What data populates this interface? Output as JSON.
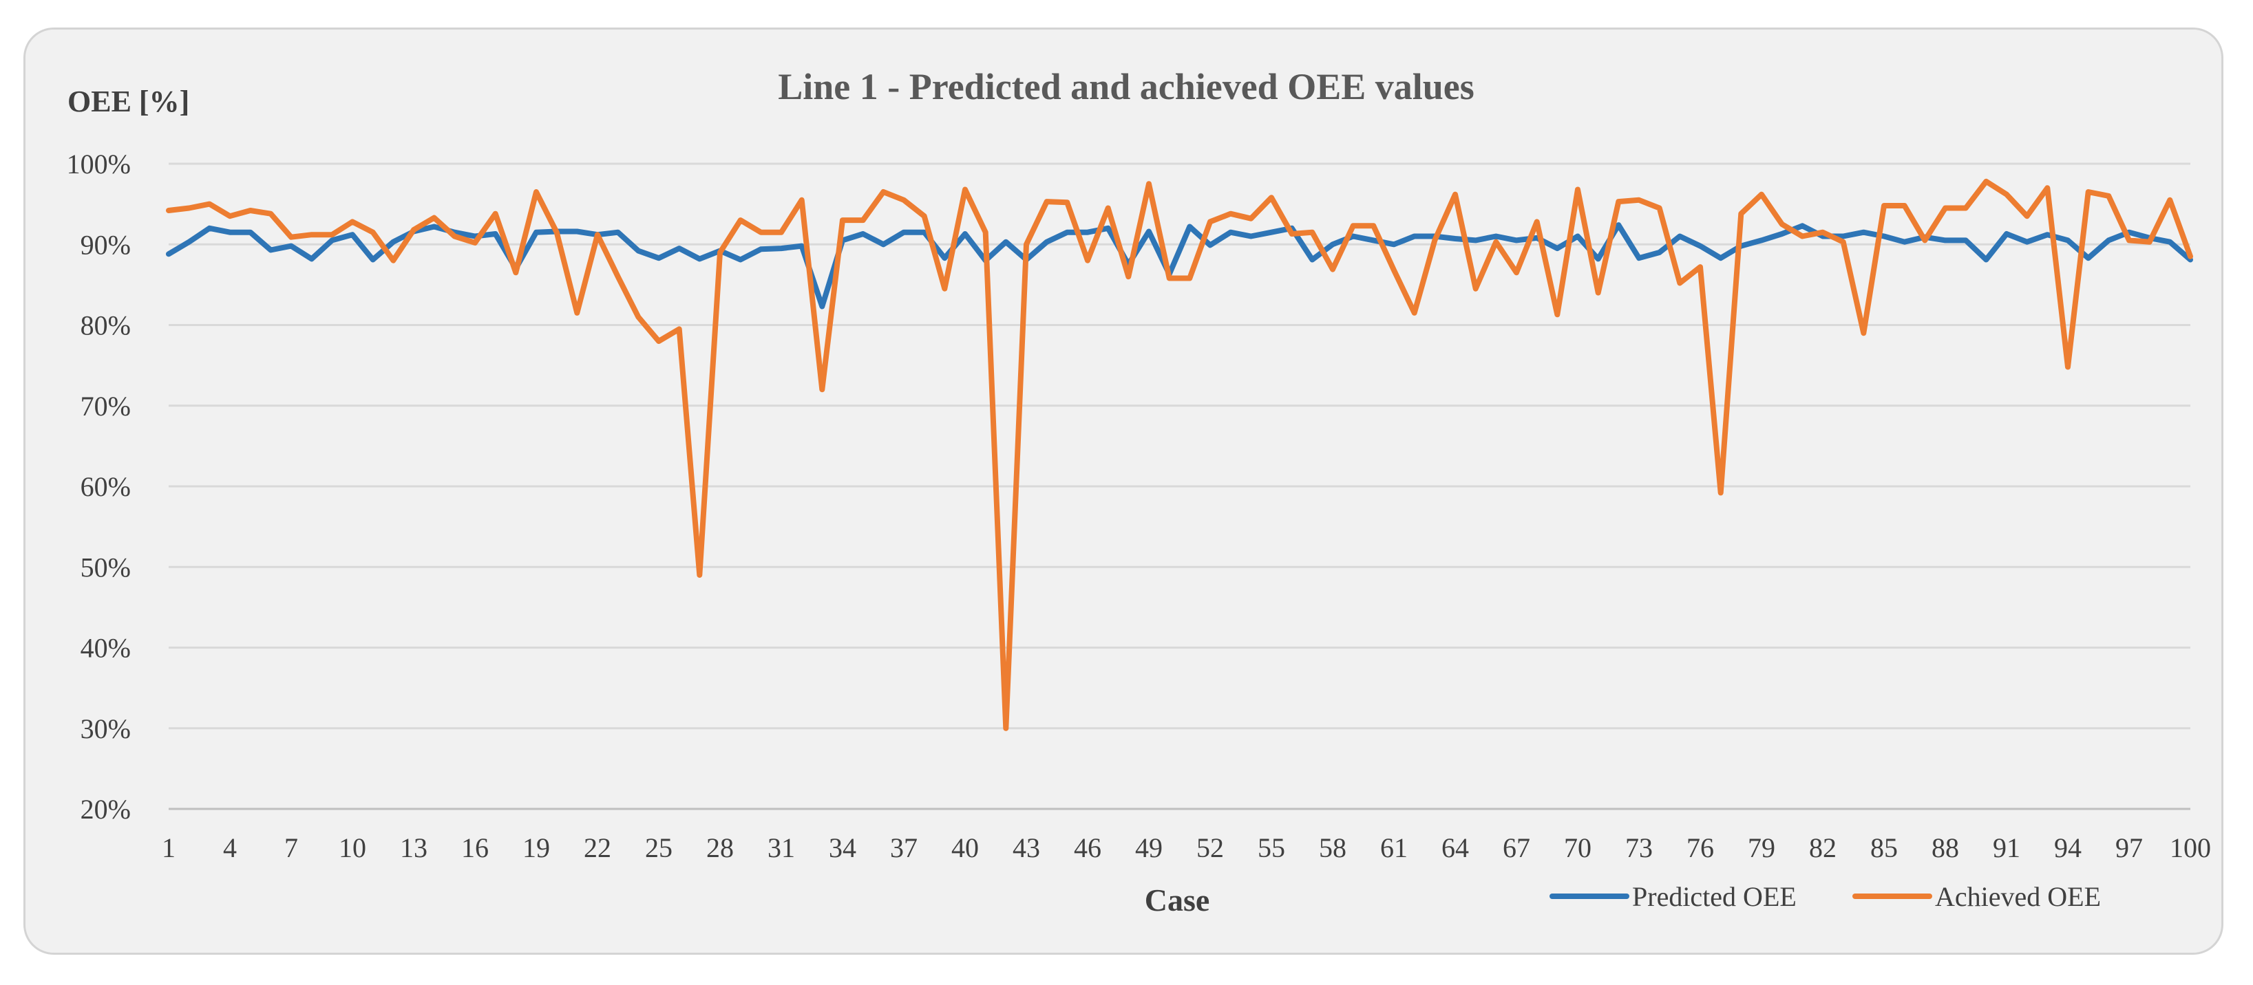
{
  "chart_data": {
    "type": "line",
    "title": "Line 1 - Predicted and achieved OEE values",
    "ylabel": "OEE [%]",
    "xlabel": "Case",
    "ylim": [
      20,
      100
    ],
    "yticks": [
      "20%",
      "30%",
      "40%",
      "50%",
      "60%",
      "70%",
      "80%",
      "90%",
      "100%"
    ],
    "x": [
      1,
      2,
      3,
      4,
      5,
      6,
      7,
      8,
      9,
      10,
      11,
      12,
      13,
      14,
      15,
      16,
      17,
      18,
      19,
      20,
      21,
      22,
      23,
      24,
      25,
      26,
      27,
      28,
      29,
      30,
      31,
      32,
      33,
      34,
      35,
      36,
      37,
      38,
      39,
      40,
      41,
      42,
      43,
      44,
      45,
      46,
      47,
      48,
      49,
      50,
      51,
      52,
      53,
      54,
      55,
      56,
      57,
      58,
      59,
      60,
      61,
      62,
      63,
      64,
      65,
      66,
      67,
      68,
      69,
      70,
      71,
      72,
      73,
      74,
      75,
      76,
      77,
      78,
      79,
      80,
      81,
      82,
      83,
      84,
      85,
      86,
      87,
      88,
      89,
      90,
      91,
      92,
      93,
      94,
      95,
      96,
      97,
      98,
      99,
      100
    ],
    "xtick_labels": [
      "1",
      "4",
      "7",
      "10",
      "13",
      "16",
      "19",
      "22",
      "25",
      "28",
      "31",
      "34",
      "37",
      "40",
      "43",
      "46",
      "49",
      "52",
      "55",
      "58",
      "61",
      "64",
      "67",
      "70",
      "73",
      "76",
      "79",
      "82",
      "85",
      "88",
      "91",
      "94",
      "97",
      "100"
    ],
    "grid": true,
    "legend_position": "bottom-right",
    "series": [
      {
        "name": "Predicted OEE",
        "color": "#2e75b6",
        "values": [
          88.8,
          90.3,
          92,
          91.5,
          91.5,
          89.3,
          89.8,
          88.2,
          90.5,
          91.2,
          88.1,
          90.3,
          91.6,
          92.2,
          91.5,
          91,
          91.3,
          87,
          91.5,
          91.6,
          91.6,
          91.2,
          91.5,
          89.2,
          88.3,
          89.5,
          88.2,
          89.2,
          88.1,
          89.4,
          89.5,
          89.8,
          82.3,
          90.5,
          91.3,
          90,
          91.5,
          91.5,
          88.3,
          91.3,
          88,
          90.3,
          88.1,
          90.3,
          91.5,
          91.5,
          92,
          87.5,
          91.6,
          86.3,
          92.2,
          89.9,
          91.5,
          91,
          91.5,
          92,
          88.1,
          90,
          91,
          90.5,
          90,
          91,
          91,
          90.7,
          90.5,
          91,
          90.5,
          90.8,
          89.5,
          91,
          88.2,
          92.4,
          88.3,
          89,
          91,
          89.8,
          88.3,
          89.8,
          90.5,
          91.3,
          92.3,
          91,
          91,
          91.5,
          91,
          90.3,
          90.9,
          90.5,
          90.5,
          88.1,
          91.3,
          90.3,
          91.2,
          90.5,
          88.3,
          90.5,
          91.5,
          90.8,
          90.3,
          88.1
        ]
      },
      {
        "name": "Achieved OEE",
        "color": "#ed7d31",
        "values": [
          94.2,
          94.5,
          95,
          93.5,
          94.2,
          93.8,
          90.9,
          91.2,
          91.2,
          92.8,
          91.5,
          88,
          91.8,
          93.3,
          91,
          90.2,
          93.8,
          86.5,
          96.5,
          91.5,
          81.5,
          91.2,
          86,
          81,
          78,
          79.5,
          49,
          89,
          93,
          91.5,
          91.5,
          95.5,
          72,
          93,
          93,
          96.5,
          95.5,
          93.5,
          84.5,
          96.8,
          91.5,
          30,
          90,
          95.3,
          95.2,
          88,
          94.5,
          86,
          97.5,
          85.8,
          85.8,
          92.8,
          93.8,
          93.2,
          95.8,
          91.3,
          91.5,
          86.9,
          92.3,
          92.3,
          86.8,
          81.5,
          90.5,
          96.2,
          84.5,
          90.3,
          86.5,
          92.8,
          81.3,
          96.8,
          84,
          95.3,
          95.5,
          94.5,
          85.2,
          87.2,
          59.2,
          93.8,
          96.2,
          92.5,
          91,
          91.5,
          90.3,
          79,
          94.8,
          94.8,
          90.5,
          94.5,
          94.5,
          97.8,
          96.2,
          93.5,
          97,
          74.8,
          96.5,
          96,
          90.5,
          90.3,
          95.5,
          88.5
        ]
      }
    ]
  }
}
